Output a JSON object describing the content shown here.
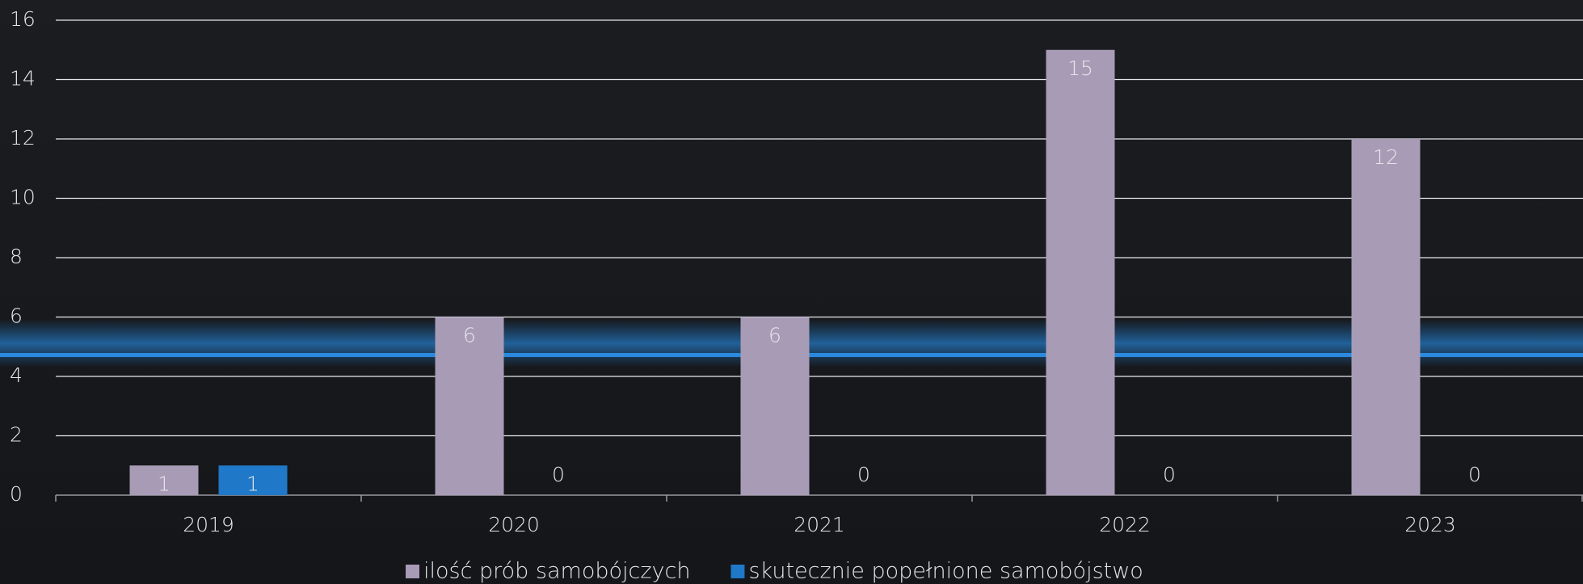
{
  "chart_data": {
    "type": "bar",
    "categories": [
      "2019",
      "2020",
      "2021",
      "2022",
      "2023"
    ],
    "series": [
      {
        "name": "ilość prób samobójczych",
        "color": "#a89bb6",
        "values": [
          1,
          6,
          6,
          15,
          12
        ]
      },
      {
        "name": "skutecznie popełnione samobójstwo",
        "color": "#1f78c8",
        "values": [
          1,
          0,
          0,
          0,
          0
        ]
      }
    ],
    "ylim": [
      0,
      16
    ],
    "yticks": [
      0,
      2,
      4,
      6,
      8,
      10,
      12,
      14,
      16
    ],
    "grid": true
  }
}
